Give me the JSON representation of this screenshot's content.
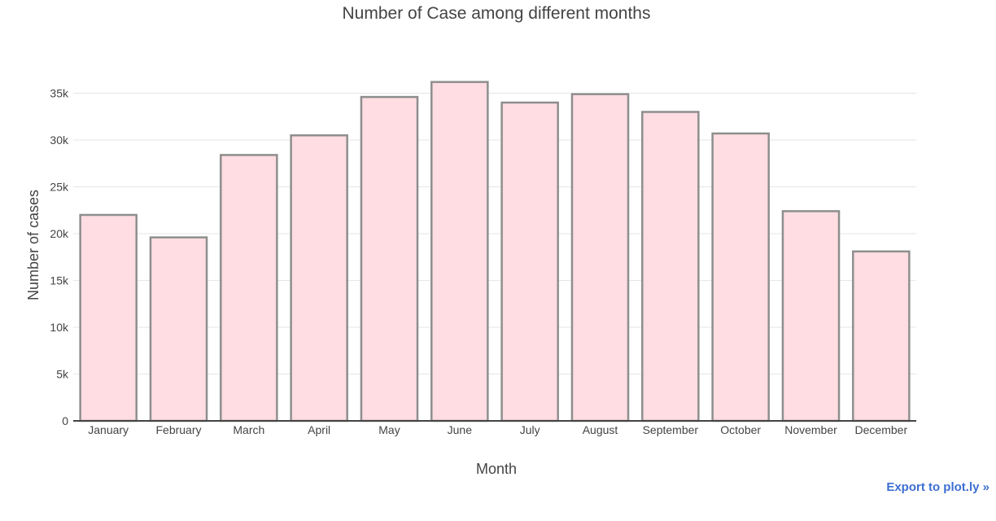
{
  "chart_data": {
    "type": "bar",
    "title": "Number of Case among different months",
    "xlabel": "Month",
    "ylabel": "Number of cases",
    "categories": [
      "January",
      "February",
      "March",
      "April",
      "May",
      "June",
      "July",
      "August",
      "September",
      "October",
      "November",
      "December"
    ],
    "values": [
      22000,
      19600,
      28400,
      30500,
      34600,
      36200,
      34000,
      34900,
      33000,
      30700,
      22400,
      18100
    ],
    "ylim": [
      0,
      38000
    ],
    "yticks": [
      0,
      5000,
      10000,
      15000,
      20000,
      25000,
      30000,
      35000
    ],
    "ytick_labels": [
      "0",
      "5k",
      "10k",
      "15k",
      "20k",
      "25k",
      "30k",
      "35k"
    ],
    "grid": true,
    "bar_fill": "#ffdde2",
    "bar_stroke": "#8e8e8e"
  },
  "export": {
    "label": "Export to plot.ly »"
  }
}
